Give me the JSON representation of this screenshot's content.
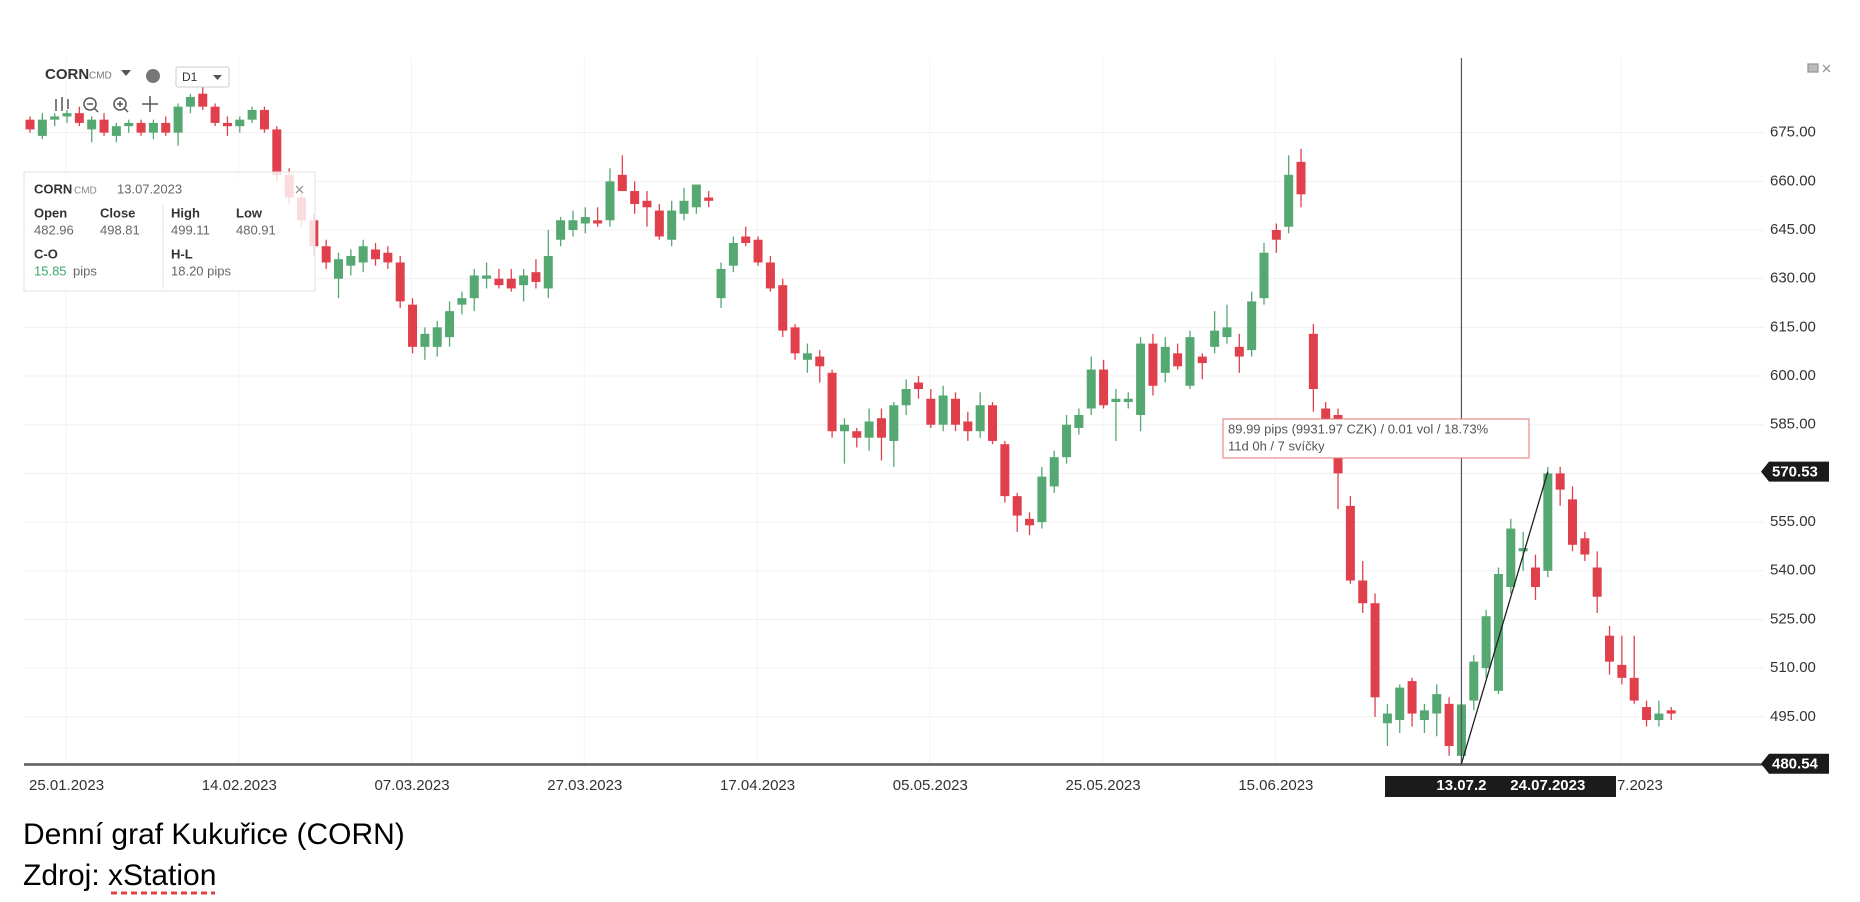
{
  "toolbar": {
    "symbol": "CORN",
    "symbol_type": "CMD",
    "timeframe": "D1"
  },
  "info_panel": {
    "symbol": "CORN",
    "symbol_type": "CMD",
    "date": "13.07.2023",
    "fields": [
      {
        "label": "Open",
        "value": "482.96"
      },
      {
        "label": "Close",
        "value": "498.81"
      },
      {
        "label": "High",
        "value": "499.11"
      },
      {
        "label": "Low",
        "value": "480.91"
      }
    ],
    "c_o": {
      "label": "C-O",
      "value": "15.85",
      "unit": "pips"
    },
    "h_l": {
      "label": "H-L",
      "value": "18.20 pips"
    }
  },
  "measure": {
    "text": "89.99 pips (9931.97 CZK) / 0.01 vol / 18.73%",
    "duration": "11d 0h / 7 svíčky"
  },
  "caption": [
    "Denní graf Kukuřice (CORN)",
    "Zdroj: xStation"
  ],
  "chart_data": {
    "type": "candlestick",
    "up_color": "#55a872",
    "down_color": "#e0404c",
    "grid": true,
    "ylim": [
      480.15,
      698
    ],
    "yticks": [
      {
        "value": 495,
        "label": "495.00"
      },
      {
        "value": 510,
        "label": "510.00"
      },
      {
        "value": 525,
        "label": "525.00"
      },
      {
        "value": 540,
        "label": "540.00"
      },
      {
        "value": 555,
        "label": "555.00"
      },
      {
        "value": 570,
        "label": "570.00"
      },
      {
        "value": 585,
        "label": "585.00"
      },
      {
        "value": 600,
        "label": "600.00"
      },
      {
        "value": 615,
        "label": "615.00"
      },
      {
        "value": 630,
        "label": "630.00"
      },
      {
        "value": 645,
        "label": "645.00"
      },
      {
        "value": 660,
        "label": "660.00"
      },
      {
        "value": 675,
        "label": "675.00"
      }
    ],
    "price_markers": [
      570.53,
      480.54
    ],
    "categories": [
      "25.01.2023",
      null,
      null,
      null,
      null,
      null,
      null,
      null,
      null,
      null,
      null,
      null,
      null,
      null,
      "14.02.2023",
      null,
      null,
      null,
      null,
      null,
      null,
      null,
      null,
      null,
      null,
      null,
      null,
      null,
      "07.03.2023",
      null,
      null,
      null,
      null,
      null,
      null,
      null,
      null,
      null,
      null,
      null,
      null,
      null,
      "27.03.2023",
      null,
      null,
      null,
      null,
      null,
      null,
      null,
      null,
      null,
      null,
      null,
      null,
      null,
      "17.04.2023",
      null,
      null,
      null,
      null,
      null,
      null,
      null,
      null,
      null,
      null,
      null,
      null,
      null,
      "05.05.2023",
      null,
      null,
      null,
      null,
      null,
      null,
      null,
      null,
      null,
      null,
      null,
      null,
      null,
      "25.05.2023",
      null,
      null,
      null,
      null,
      null,
      null,
      null,
      null,
      null,
      null,
      null,
      null,
      null,
      "15.06.2023",
      null,
      null,
      null,
      null,
      null,
      null,
      null,
      null,
      null,
      null,
      null,
      null,
      null,
      null,
      null,
      null,
      null,
      "13.07.2",
      null,
      null,
      null,
      null,
      null,
      null,
      "24.07.2023",
      null,
      null,
      "7.2023",
      null,
      null,
      null,
      null,
      null,
      null,
      null
    ],
    "ohlc": [
      [
        679,
        680,
        675,
        676
      ],
      [
        674,
        681,
        673,
        679
      ],
      [
        679,
        681,
        677,
        680
      ],
      [
        680,
        682,
        678,
        681
      ],
      [
        681,
        683,
        677,
        678
      ],
      [
        676,
        680,
        672,
        679
      ],
      [
        679,
        681,
        674,
        675
      ],
      [
        674,
        678,
        672,
        677
      ],
      [
        677,
        679,
        675,
        678
      ],
      [
        678,
        679,
        674,
        675
      ],
      [
        675,
        679,
        673,
        678
      ],
      [
        678,
        680,
        674,
        675
      ],
      [
        675,
        684,
        671,
        683
      ],
      [
        683,
        687,
        681,
        686
      ],
      [
        687,
        689,
        682,
        683
      ],
      [
        683,
        684,
        677,
        678
      ],
      [
        678,
        680,
        674,
        677
      ],
      [
        677,
        680,
        675,
        679
      ],
      [
        679,
        683,
        678,
        682
      ],
      [
        682,
        683,
        675,
        676
      ],
      [
        676,
        677,
        660,
        662
      ],
      [
        662,
        664,
        653,
        655
      ],
      [
        655,
        657,
        646,
        648
      ],
      [
        648,
        650,
        637,
        640
      ],
      [
        640,
        642,
        633,
        635
      ],
      [
        630,
        638,
        624,
        636
      ],
      [
        634,
        639,
        631,
        637
      ],
      [
        635,
        642,
        632,
        640
      ],
      [
        639,
        641,
        634,
        636
      ],
      [
        638,
        640,
        633,
        635
      ],
      [
        635,
        637,
        621,
        623
      ],
      [
        622,
        624,
        607,
        609
      ],
      [
        609,
        615,
        605,
        613
      ],
      [
        609,
        617,
        606,
        615
      ],
      [
        612,
        623,
        609,
        620
      ],
      [
        622,
        626,
        619,
        624
      ],
      [
        624,
        633,
        620,
        631
      ],
      [
        630,
        635,
        627,
        631
      ],
      [
        630,
        633,
        627,
        628
      ],
      [
        630,
        633,
        626,
        627
      ],
      [
        628,
        633,
        623,
        631
      ],
      [
        632,
        636,
        627,
        629
      ],
      [
        627,
        645,
        624,
        637
      ],
      [
        642,
        649,
        640,
        648
      ],
      [
        645,
        651,
        643,
        648
      ],
      [
        647,
        652,
        644,
        649
      ],
      [
        648,
        652,
        646,
        647
      ],
      [
        648,
        664,
        646,
        660
      ],
      [
        662,
        668,
        657,
        657
      ],
      [
        657,
        660,
        650,
        653
      ],
      [
        654,
        657,
        646,
        652
      ],
      [
        651,
        653,
        642,
        643
      ],
      [
        642,
        654,
        640,
        651
      ],
      [
        650,
        658,
        648,
        654
      ],
      [
        652,
        659,
        650,
        659
      ],
      [
        655,
        657,
        652,
        654
      ],
      [
        624,
        635,
        621,
        633
      ],
      [
        634,
        643,
        632,
        641
      ],
      [
        643,
        646,
        640,
        641
      ],
      [
        642,
        643,
        634,
        635
      ],
      [
        635,
        637,
        626,
        627
      ],
      [
        628,
        630,
        612,
        614
      ],
      [
        615,
        616,
        605,
        607
      ],
      [
        605,
        610,
        601,
        607
      ],
      [
        606,
        608,
        598,
        603
      ],
      [
        601,
        602,
        581,
        583
      ],
      [
        583,
        587,
        573,
        585
      ],
      [
        583,
        584,
        578,
        581
      ],
      [
        581,
        590,
        577,
        586
      ],
      [
        587,
        590,
        574,
        581
      ],
      [
        580,
        592,
        572,
        591
      ],
      [
        591,
        599,
        588,
        596
      ],
      [
        598,
        600,
        593,
        596
      ],
      [
        593,
        596,
        584,
        585
      ],
      [
        585,
        597,
        583,
        594
      ],
      [
        593,
        595,
        583,
        585
      ],
      [
        586,
        589,
        580,
        583
      ],
      [
        583,
        595,
        581,
        591
      ],
      [
        591,
        592,
        579,
        580
      ],
      [
        579,
        580,
        561,
        563
      ],
      [
        563,
        564,
        552,
        557
      ],
      [
        556,
        558,
        551,
        554
      ],
      [
        555,
        572,
        553,
        569
      ],
      [
        566,
        577,
        564,
        575
      ],
      [
        575,
        588,
        573,
        585
      ],
      [
        584,
        590,
        582,
        588
      ],
      [
        590,
        606,
        588,
        602
      ],
      [
        602,
        605,
        590,
        591
      ],
      [
        592,
        596,
        580,
        593
      ],
      [
        592,
        595,
        590,
        593
      ],
      [
        588,
        612,
        583,
        610
      ],
      [
        610,
        613,
        594,
        597
      ],
      [
        601,
        612,
        598,
        609
      ],
      [
        607,
        610,
        602,
        603
      ],
      [
        597,
        614,
        596,
        612
      ],
      [
        606,
        607,
        599,
        604
      ],
      [
        609,
        620,
        607,
        614
      ],
      [
        612,
        622,
        610,
        615
      ],
      [
        609,
        613,
        601,
        606
      ],
      [
        608,
        626,
        606,
        623
      ],
      [
        624,
        641,
        622,
        638
      ],
      [
        645,
        647,
        638,
        642
      ],
      [
        646,
        668,
        644,
        662
      ],
      [
        666,
        670,
        652,
        656
      ],
      [
        613,
        616,
        589,
        596
      ],
      [
        590,
        592,
        578,
        582
      ],
      [
        588,
        590,
        559,
        570
      ],
      [
        560,
        563,
        536,
        537
      ],
      [
        537,
        543,
        527,
        530
      ],
      [
        530,
        533,
        495,
        501
      ],
      [
        493,
        499,
        486,
        496
      ],
      [
        494,
        505,
        490,
        504
      ],
      [
        506,
        507,
        492,
        496
      ],
      [
        494,
        499,
        490,
        497
      ],
      [
        496,
        505,
        489,
        502
      ],
      [
        499,
        501,
        483,
        486
      ],
      [
        482.96,
        499.11,
        480.91,
        498.81
      ],
      [
        500,
        514,
        497,
        512
      ],
      [
        510,
        528,
        507,
        526
      ],
      [
        503,
        541,
        502,
        539
      ],
      [
        535,
        556,
        533,
        553
      ],
      [
        546,
        552,
        540,
        547
      ],
      [
        541,
        545,
        531,
        535
      ],
      [
        540,
        572,
        538,
        570
      ],
      [
        570,
        572,
        560,
        565
      ],
      [
        562,
        566,
        546,
        548
      ],
      [
        550,
        552,
        543,
        545
      ],
      [
        541,
        546,
        527,
        532
      ],
      [
        520,
        523,
        508,
        512
      ],
      [
        511,
        520,
        505,
        507
      ],
      [
        507,
        520,
        499,
        500
      ],
      [
        498,
        500,
        492,
        494
      ],
      [
        494,
        500,
        492,
        496
      ],
      [
        497,
        498,
        494,
        496
      ]
    ]
  }
}
